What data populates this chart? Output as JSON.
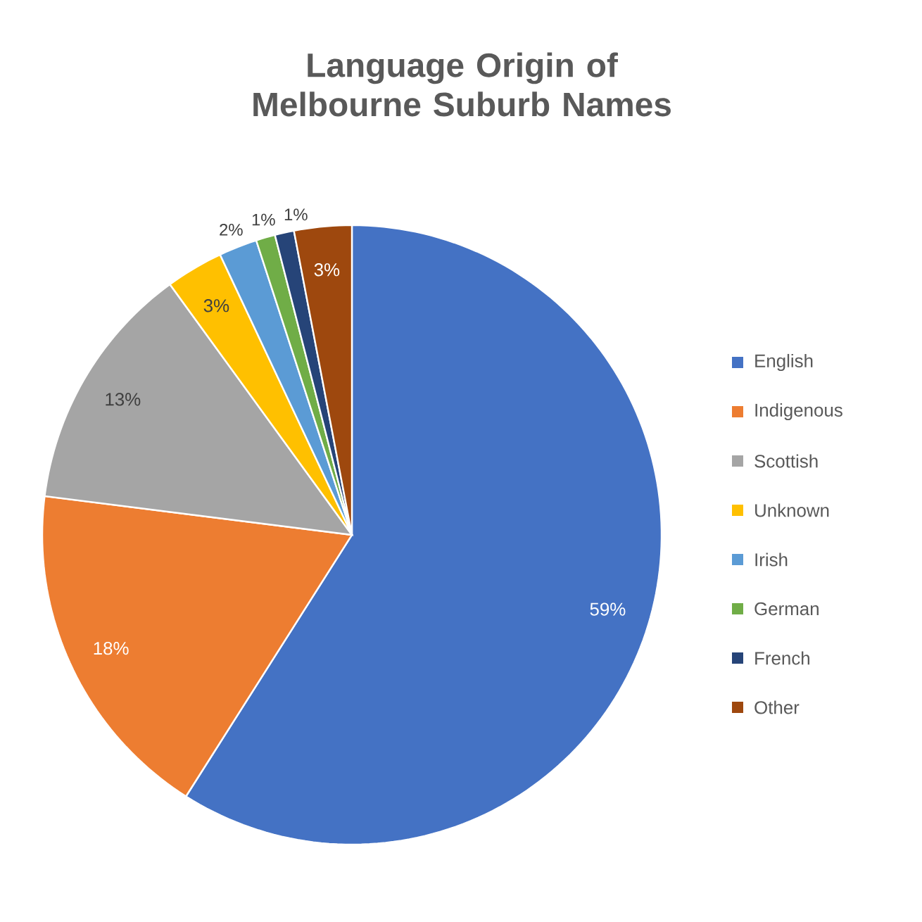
{
  "chart_data": {
    "type": "pie",
    "title": "Language Origin of Melbourne Suburb Names",
    "categories": [
      "English",
      "Indigenous",
      "Scottish",
      "Unknown",
      "Irish",
      "German",
      "French",
      "Other"
    ],
    "values": [
      59,
      18,
      13,
      3,
      2,
      1,
      1,
      3
    ],
    "value_labels": [
      "59%",
      "18%",
      "13%",
      "3%",
      "2%",
      "1%",
      "1%",
      "3%"
    ],
    "colors": [
      "#4472c4",
      "#ed7d31",
      "#a5a5a5",
      "#ffc000",
      "#5b9bd5",
      "#70ad47",
      "#264478",
      "#9e480e"
    ],
    "legend": "right"
  }
}
